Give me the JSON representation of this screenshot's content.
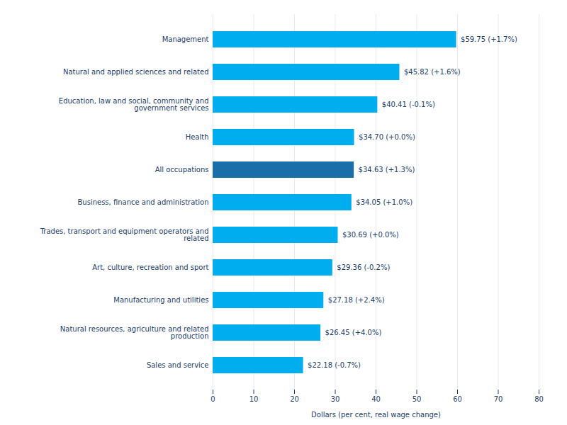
{
  "chart_data": {
    "type": "bar",
    "orientation": "horizontal",
    "categories": [
      "Sales and service",
      "Natural resources, agriculture and related\nproduction",
      "Manufacturing and utilities",
      "Art, culture, recreation and sport",
      "Trades, transport and equipment operators and\nrelated",
      "Business, finance and administration",
      "All occupations",
      "Health",
      "Education, law and social, community and\ngovernment services",
      "Natural and applied sciences and related",
      "Management"
    ],
    "values": [
      22.18,
      26.45,
      27.18,
      29.36,
      30.69,
      34.05,
      34.63,
      34.7,
      40.41,
      45.82,
      59.75
    ],
    "value_labels": [
      "$22.18 (-0.7%)",
      "$26.45 (+4.0%)",
      "$27.18 (+2.4%)",
      "$29.36 (-0.2%)",
      "$30.69 (+0.0%)",
      "$34.05 (+1.0%)",
      "$34.63 (+1.3%)",
      "$34.70 (+0.0%)",
      "$40.41 (-0.1%)",
      "$45.82 (+1.6%)",
      "$59.75 (+1.7%)"
    ],
    "data_labels": true,
    "colors": [
      "#00AEEF",
      "#00AEEF",
      "#00AEEF",
      "#00AEEF",
      "#00AEEF",
      "#00AEEF",
      "#1A6FA8",
      "#00AEEF",
      "#00AEEF",
      "#00AEEF",
      "#00AEEF"
    ],
    "xlabel": "Dollars (per cent, real wage change)",
    "xlim": [
      0,
      80
    ],
    "xticks": [
      0,
      10,
      20,
      30,
      40,
      50,
      60,
      70,
      80
    ],
    "grid": true
  }
}
